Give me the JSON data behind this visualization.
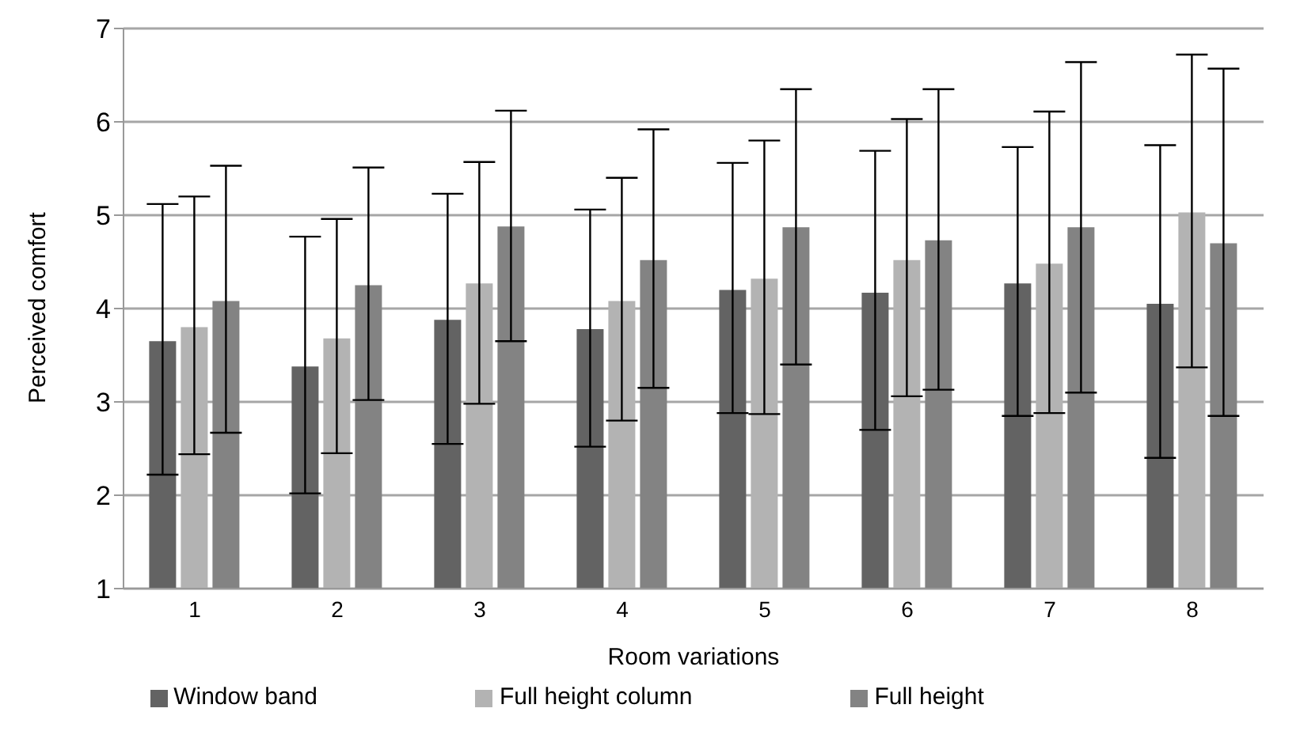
{
  "chart_data": {
    "type": "bar",
    "xlabel": "Room variations",
    "ylabel": "Perceived comfort",
    "categories": [
      "1",
      "2",
      "3",
      "4",
      "5",
      "6",
      "7",
      "8"
    ],
    "series": [
      {
        "name": "Window band",
        "color": "#636363",
        "values": [
          3.65,
          3.38,
          3.88,
          3.78,
          4.2,
          4.17,
          4.27,
          4.05
        ],
        "errors": [
          [
            2.22,
            5.12
          ],
          [
            2.02,
            4.77
          ],
          [
            2.55,
            5.23
          ],
          [
            2.52,
            5.06
          ],
          [
            2.88,
            5.56
          ],
          [
            2.7,
            5.69
          ],
          [
            2.85,
            5.73
          ],
          [
            2.4,
            5.75
          ]
        ]
      },
      {
        "name": "Full height column",
        "color": "#b3b3b3",
        "values": [
          3.8,
          3.68,
          4.27,
          4.08,
          4.32,
          4.52,
          4.48,
          5.03
        ],
        "errors": [
          [
            2.44,
            5.2
          ],
          [
            2.45,
            4.96
          ],
          [
            2.98,
            5.57
          ],
          [
            2.8,
            5.4
          ],
          [
            2.87,
            5.8
          ],
          [
            3.06,
            6.03
          ],
          [
            2.88,
            6.11
          ],
          [
            3.37,
            6.72
          ]
        ]
      },
      {
        "name": "Full height",
        "color": "#838383",
        "values": [
          4.08,
          4.25,
          4.88,
          4.52,
          4.87,
          4.73,
          4.87,
          4.7
        ],
        "errors": [
          [
            2.67,
            5.53
          ],
          [
            3.02,
            5.51
          ],
          [
            3.65,
            6.12
          ],
          [
            3.15,
            5.92
          ],
          [
            3.4,
            6.35
          ],
          [
            3.13,
            6.35
          ],
          [
            3.1,
            6.64
          ],
          [
            2.85,
            6.57
          ]
        ]
      }
    ],
    "ylim": [
      1,
      7
    ],
    "yticks": [
      1,
      2,
      3,
      4,
      5,
      6,
      7
    ],
    "grid": "y",
    "legend": "bottom"
  }
}
